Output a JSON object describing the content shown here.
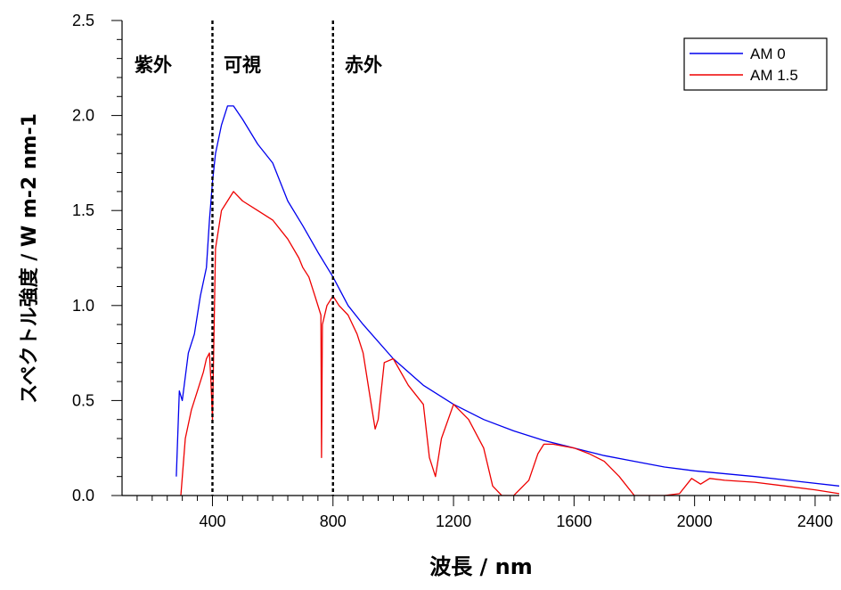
{
  "chart_data": {
    "type": "line",
    "xlabel": "波長 / nm",
    "ylabel": "スペクトル強度 / W m-2 nm-1",
    "xlim": [
      100,
      2480
    ],
    "ylim": [
      0,
      2.5
    ],
    "x_ticks": [
      400,
      800,
      1200,
      1600,
      2000,
      2400
    ],
    "y_ticks": [
      "0.0",
      "0.5",
      "1.0",
      "1.5",
      "2.0",
      "2.5"
    ],
    "grid": false,
    "legend_position": "top-right",
    "regions": [
      {
        "label": "紫外",
        "x_end": 400
      },
      {
        "label": "可視",
        "x_end": 800
      },
      {
        "label": "赤外"
      }
    ],
    "region_boundaries": [
      400,
      800
    ],
    "series": [
      {
        "name": "AM 0",
        "color": "#0000ee",
        "x": [
          280,
          290,
          300,
          320,
          340,
          360,
          380,
          390,
          400,
          410,
          430,
          450,
          470,
          500,
          550,
          600,
          650,
          700,
          750,
          800,
          850,
          900,
          1000,
          1100,
          1200,
          1300,
          1400,
          1500,
          1600,
          1700,
          1800,
          1900,
          2000,
          2200,
          2480
        ],
        "y": [
          0.1,
          0.55,
          0.5,
          0.75,
          0.85,
          1.05,
          1.2,
          1.45,
          1.65,
          1.8,
          1.95,
          2.05,
          2.05,
          1.98,
          1.85,
          1.75,
          1.55,
          1.42,
          1.28,
          1.15,
          1.0,
          0.9,
          0.72,
          0.58,
          0.48,
          0.4,
          0.34,
          0.29,
          0.25,
          0.21,
          0.18,
          0.15,
          0.13,
          0.1,
          0.05
        ]
      },
      {
        "name": "AM 1.5",
        "color": "#ee0000",
        "x": [
          295,
          310,
          330,
          350,
          370,
          380,
          390,
          395,
          400,
          410,
          430,
          450,
          470,
          500,
          550,
          600,
          650,
          687,
          700,
          720,
          740,
          760,
          762,
          765,
          780,
          800,
          820,
          850,
          880,
          900,
          930,
          940,
          950,
          970,
          1000,
          1050,
          1100,
          1120,
          1140,
          1160,
          1200,
          1250,
          1300,
          1330,
          1360,
          1400,
          1450,
          1480,
          1500,
          1530,
          1600,
          1650,
          1700,
          1750,
          1800,
          1850,
          1900,
          1950,
          1990,
          2020,
          2050,
          2100,
          2200,
          2300,
          2400,
          2480
        ],
        "y": [
          0.0,
          0.3,
          0.45,
          0.55,
          0.65,
          0.72,
          0.75,
          0.6,
          0.4,
          1.3,
          1.5,
          1.55,
          1.6,
          1.55,
          1.5,
          1.45,
          1.35,
          1.25,
          1.2,
          1.15,
          1.05,
          0.95,
          0.2,
          0.9,
          1.0,
          1.05,
          1.0,
          0.95,
          0.85,
          0.75,
          0.45,
          0.35,
          0.4,
          0.7,
          0.72,
          0.58,
          0.48,
          0.2,
          0.1,
          0.3,
          0.48,
          0.4,
          0.25,
          0.05,
          0.0,
          0.0,
          0.08,
          0.22,
          0.27,
          0.27,
          0.25,
          0.22,
          0.18,
          0.1,
          0.0,
          0.0,
          0.0,
          0.01,
          0.09,
          0.06,
          0.09,
          0.08,
          0.07,
          0.05,
          0.03,
          0.01
        ]
      }
    ]
  }
}
